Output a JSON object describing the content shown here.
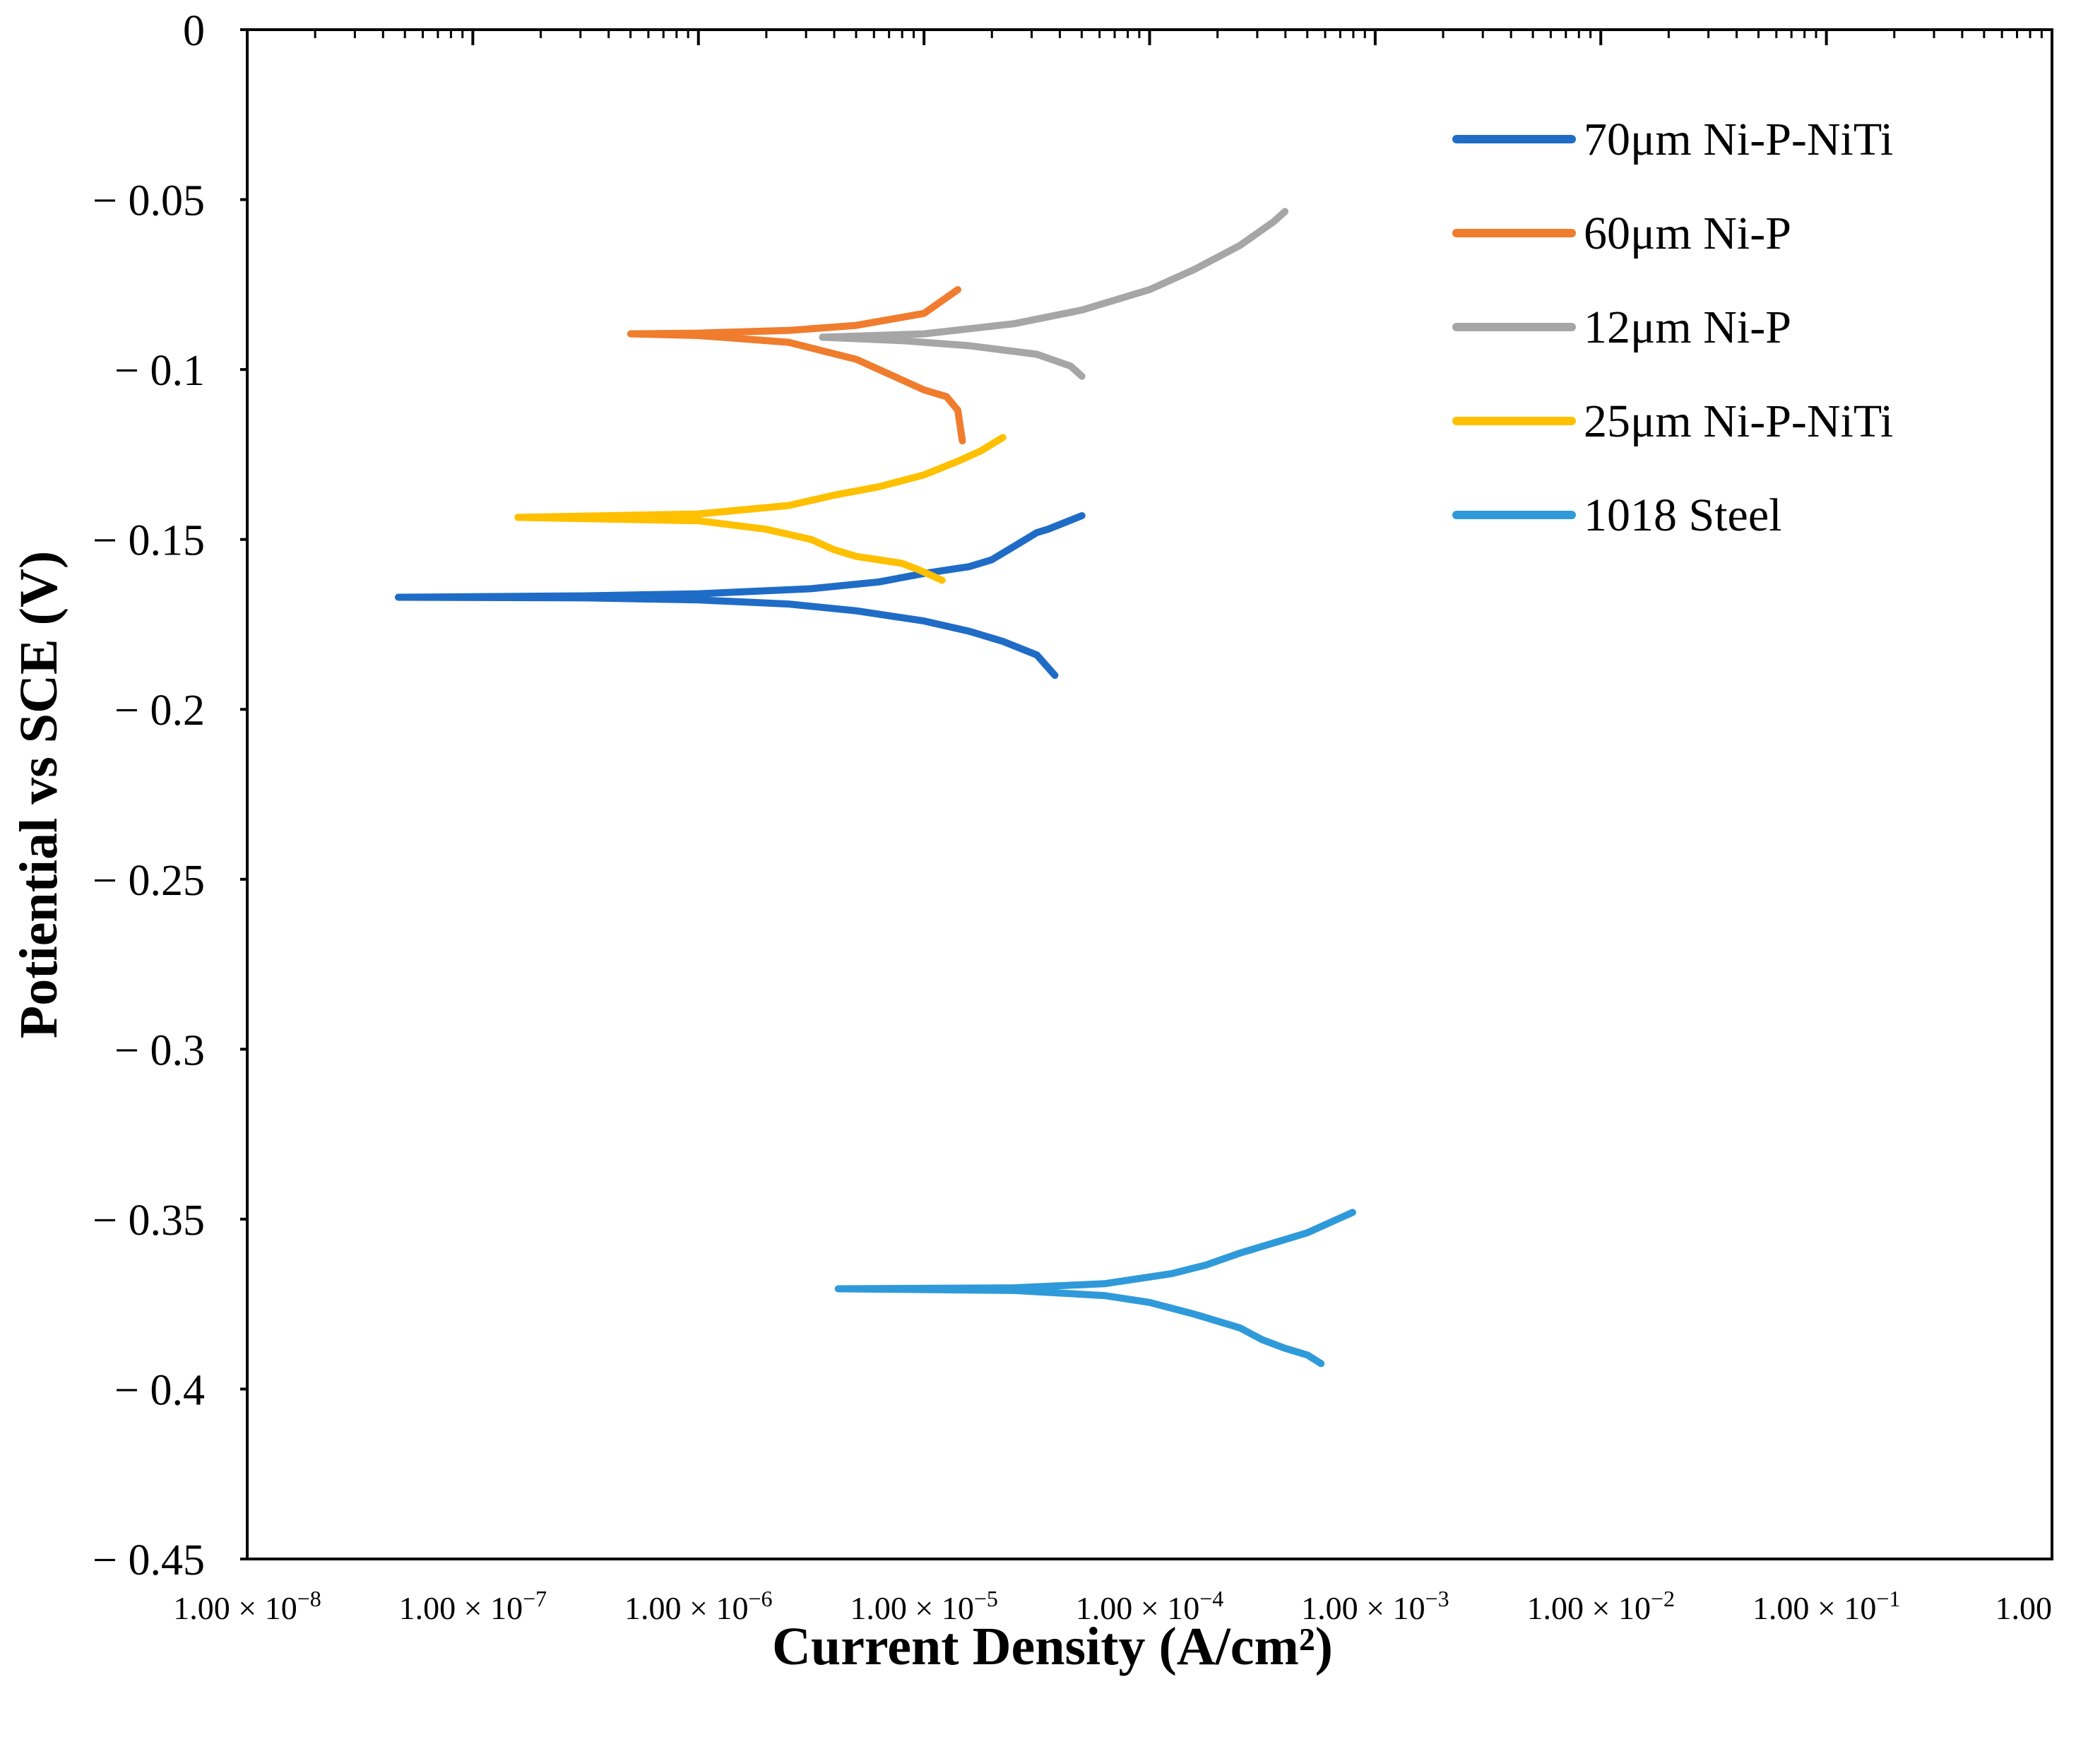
{
  "chart_data": {
    "type": "line",
    "title": "",
    "xlabel": "Current Density (A/cm²)",
    "ylabel": "Potiential vs SCE (V)",
    "xscale": "log10",
    "xlim_exponent": [
      -8,
      0
    ],
    "ylim": [
      -0.45,
      0
    ],
    "grid": false,
    "legend_position": "top-right",
    "y_ticks": [
      0,
      -0.05,
      -0.1,
      -0.15,
      -0.2,
      -0.25,
      -0.3,
      -0.35,
      -0.4,
      -0.45
    ],
    "y_tick_labels": [
      "0",
      "− 0.05",
      "− 0.1",
      "− 0.15",
      "− 0.2",
      "− 0.25",
      "− 0.3",
      "− 0.35",
      "− 0.4",
      "− 0.45"
    ],
    "x_ticks_exponent": [
      -8,
      -7,
      -6,
      -5,
      -4,
      -3,
      -2,
      -1,
      0
    ],
    "x_tick_labels": [
      {
        "base": "1.00 × 10",
        "exp": "−8"
      },
      {
        "base": "1.00 × 10",
        "exp": "−7"
      },
      {
        "base": "1.00 × 10",
        "exp": "−6"
      },
      {
        "base": "1.00 × 10",
        "exp": "−5"
      },
      {
        "base": "1.00 × 10",
        "exp": "−4"
      },
      {
        "base": "1.00 × 10",
        "exp": "−3"
      },
      {
        "base": "1.00 × 10",
        "exp": "−2"
      },
      {
        "base": "1.00 × 10",
        "exp": "−1"
      },
      {
        "base": "1.00",
        "exp": ""
      }
    ],
    "series": [
      {
        "name": "70μm Ni-P-NiTi",
        "color": "#1f6cc7",
        "anodic_log_x": [
          -7.33,
          -6.5,
          -6.0,
          -5.5,
          -5.2,
          -5.0,
          -4.8,
          -4.7,
          -4.6,
          -4.5,
          -4.45,
          -4.3
        ],
        "anodic_y": [
          -0.167,
          -0.1666,
          -0.166,
          -0.1645,
          -0.1625,
          -0.16,
          -0.158,
          -0.156,
          -0.152,
          -0.148,
          -0.147,
          -0.143
        ],
        "cathodic_log_x": [
          -7.33,
          -6.5,
          -6.0,
          -5.6,
          -5.3,
          -5.0,
          -4.8,
          -4.65,
          -4.5,
          -4.42
        ],
        "cathodic_y": [
          -0.167,
          -0.1672,
          -0.1678,
          -0.169,
          -0.171,
          -0.174,
          -0.177,
          -0.18,
          -0.184,
          -0.19
        ]
      },
      {
        "name": "60μm Ni-P",
        "color": "#f07c2e",
        "anodic_log_x": [
          -6.3,
          -6.0,
          -5.6,
          -5.3,
          -5.0,
          -4.85
        ],
        "anodic_y": [
          -0.0895,
          -0.0893,
          -0.0885,
          -0.087,
          -0.0835,
          -0.0765
        ],
        "cathodic_log_x": [
          -6.3,
          -6.0,
          -5.6,
          -5.3,
          -5.1,
          -5.0,
          -4.9,
          -4.85,
          -4.83
        ],
        "cathodic_y": [
          -0.0895,
          -0.09,
          -0.092,
          -0.097,
          -0.103,
          -0.106,
          -0.108,
          -0.112,
          -0.121
        ]
      },
      {
        "name": "12μm Ni-P",
        "color": "#a6a6a6",
        "anodic_log_x": [
          -5.45,
          -5.0,
          -4.6,
          -4.3,
          -4.0,
          -3.8,
          -3.6,
          -3.45,
          -3.4
        ],
        "anodic_y": [
          -0.0905,
          -0.0895,
          -0.0865,
          -0.0825,
          -0.0765,
          -0.0705,
          -0.0635,
          -0.0565,
          -0.0535
        ],
        "cathodic_log_x": [
          -5.45,
          -5.1,
          -4.8,
          -4.5,
          -4.35,
          -4.3
        ],
        "cathodic_y": [
          -0.0905,
          -0.0915,
          -0.093,
          -0.0955,
          -0.099,
          -0.102
        ]
      },
      {
        "name": "25μm Ni-P-NiTi",
        "color": "#ffc000",
        "anodic_log_x": [
          -6.8,
          -6.0,
          -5.6,
          -5.4,
          -5.2,
          -5.0,
          -4.85,
          -4.75,
          -4.65
        ],
        "anodic_y": [
          -0.1435,
          -0.1425,
          -0.14,
          -0.137,
          -0.1345,
          -0.131,
          -0.127,
          -0.124,
          -0.12
        ],
        "cathodic_log_x": [
          -6.8,
          -6.0,
          -5.7,
          -5.5,
          -5.4,
          -5.3,
          -5.2,
          -5.1,
          -5.02,
          -4.92
        ],
        "cathodic_y": [
          -0.1435,
          -0.1445,
          -0.147,
          -0.15,
          -0.153,
          -0.155,
          -0.156,
          -0.157,
          -0.159,
          -0.162
        ]
      },
      {
        "name": "1018 Steel",
        "color": "#2f9ad9",
        "anodic_log_x": [
          -5.38,
          -4.6,
          -4.2,
          -3.9,
          -3.75,
          -3.6,
          -3.45,
          -3.3,
          -3.2,
          -3.1
        ],
        "anodic_y": [
          -0.3705,
          -0.3702,
          -0.369,
          -0.366,
          -0.3635,
          -0.36,
          -0.357,
          -0.354,
          -0.351,
          -0.348
        ],
        "cathodic_log_x": [
          -5.38,
          -4.6,
          -4.2,
          -4.0,
          -3.8,
          -3.6,
          -3.5,
          -3.4,
          -3.3,
          -3.24
        ],
        "cathodic_y": [
          -0.3705,
          -0.371,
          -0.3725,
          -0.3745,
          -0.378,
          -0.382,
          -0.3855,
          -0.388,
          -0.39,
          -0.3925
        ]
      }
    ]
  }
}
